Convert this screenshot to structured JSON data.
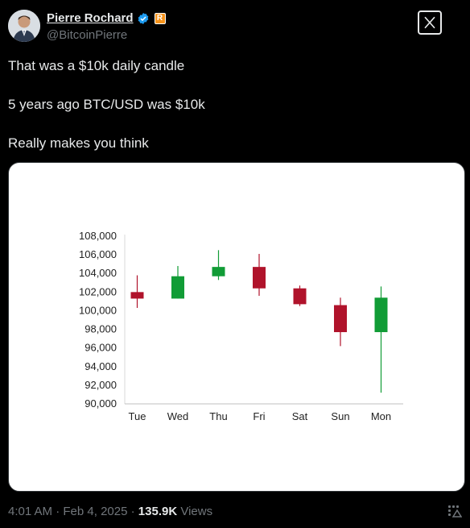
{
  "author": {
    "name": "Pierre Rochard",
    "handle": "@BitcoinPierre",
    "badge_letter": "R"
  },
  "tweet": {
    "lines": [
      "That was a $10k daily candle",
      "5 years ago BTC/USD was $10k",
      "Really makes you think"
    ]
  },
  "meta": {
    "time": "4:01 AM",
    "sep": "·",
    "date": "Feb 4, 2025",
    "views_count": "135.9K",
    "views_label": "Views"
  },
  "colors": {
    "up": "#119c36",
    "down": "#b0132b",
    "verified": "#1d9bf0"
  },
  "chart_data": {
    "type": "candlestick",
    "categories": [
      "Tue",
      "Wed",
      "Thu",
      "Fri",
      "Sat",
      "Sun",
      "Mon"
    ],
    "ylim": [
      90000,
      108000
    ],
    "yticks": [
      "90,000",
      "92,000",
      "94,000",
      "96,000",
      "98,000",
      "100,000",
      "102,000",
      "104,000",
      "106,000",
      "108,000"
    ],
    "candles": [
      {
        "x": "Tue",
        "open": 102000,
        "close": 101300,
        "high": 103800,
        "low": 100300
      },
      {
        "x": "Wed",
        "open": 101300,
        "close": 103700,
        "high": 104800,
        "low": 101300
      },
      {
        "x": "Thu",
        "open": 103700,
        "close": 104700,
        "high": 106500,
        "low": 103300
      },
      {
        "x": "Fri",
        "open": 104700,
        "close": 102400,
        "high": 106100,
        "low": 101600
      },
      {
        "x": "Sat",
        "open": 102400,
        "close": 100700,
        "high": 102700,
        "low": 100500
      },
      {
        "x": "Sun",
        "open": 100600,
        "close": 97700,
        "high": 101400,
        "low": 96200
      },
      {
        "x": "Mon",
        "open": 97700,
        "close": 101400,
        "high": 102600,
        "low": 91200
      }
    ]
  }
}
